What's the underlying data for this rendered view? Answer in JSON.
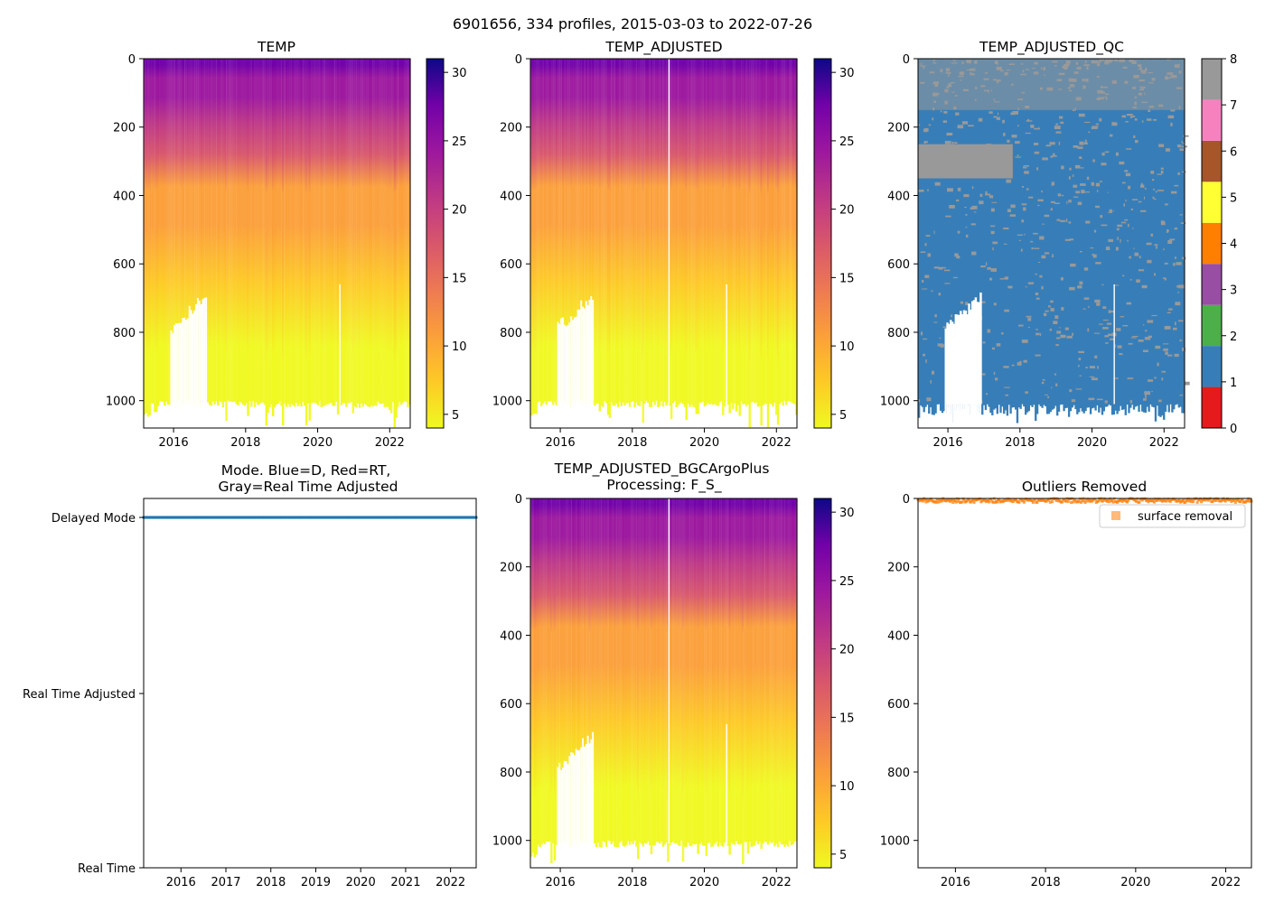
{
  "figure_title": "6901656, 334 profiles, 2015-03-03 to 2022-07-26",
  "chart_data": [
    {
      "id": "temp",
      "type": "heatmap",
      "title": "TEMP",
      "xlabel": "",
      "ylabel": "",
      "xlim": [
        2015.17,
        2022.57
      ],
      "ylim": [
        1080,
        0
      ],
      "xticks": [
        2016,
        2018,
        2020,
        2022
      ],
      "yticks": [
        0,
        200,
        400,
        600,
        800,
        1000
      ],
      "colorbar": {
        "colormap": "plasma_r",
        "range": [
          4,
          31
        ],
        "ticks": [
          5,
          10,
          15,
          20,
          25,
          30
        ]
      },
      "profile": {
        "surface_temp": 28,
        "temp_at_200": 21,
        "temp_at_400": 11,
        "deep_temp": 4.5,
        "typical_max_depth": 1010
      },
      "gap": {
        "x_start": 2015.9,
        "x_end": 2016.95,
        "depth_top_start": 790,
        "depth_top_end": 690
      }
    },
    {
      "id": "temp_adjusted",
      "type": "heatmap",
      "title": "TEMP_ADJUSTED",
      "xlim": [
        2015.17,
        2022.57
      ],
      "ylim": [
        1080,
        0
      ],
      "xticks": [
        2016,
        2018,
        2020,
        2022
      ],
      "yticks": [
        0,
        200,
        400,
        600,
        800,
        1000
      ],
      "colorbar": {
        "colormap": "plasma_r",
        "range": [
          4,
          31
        ],
        "ticks": [
          5,
          10,
          15,
          20,
          25,
          30
        ]
      },
      "blank_profile_years": [
        2019.0
      ]
    },
    {
      "id": "temp_adjusted_qc",
      "type": "heatmap",
      "title": "TEMP_ADJUSTED_QC",
      "xlim": [
        2015.17,
        2022.57
      ],
      "ylim": [
        1080,
        0
      ],
      "xticks": [
        2016,
        2018,
        2020,
        2022
      ],
      "yticks": [
        0,
        200,
        400,
        600,
        800,
        1000
      ],
      "colorbar": {
        "type": "categorical",
        "flags": [
          0,
          1,
          2,
          3,
          4,
          5,
          6,
          7,
          8
        ],
        "colors": [
          "#e41a1c",
          "#377eb8",
          "#4daf4a",
          "#984ea3",
          "#ff7f00",
          "#ffff33",
          "#a65628",
          "#f781bf",
          "#999999"
        ]
      },
      "dominant_flags": [
        1,
        8
      ],
      "gray_block": {
        "x_start": 2015.17,
        "x_end": 2017.8,
        "depth_start": 250,
        "depth_end": 350,
        "flag": 8
      }
    },
    {
      "id": "mode",
      "type": "scatter",
      "title": "Mode. Blue=D, Red=RT,\nGray=Real Time Adjusted",
      "xlim": [
        2015.17,
        2022.57
      ],
      "xticks": [
        2016,
        2017,
        2018,
        2019,
        2020,
        2021,
        2022
      ],
      "ycategories": [
        "Delayed Mode",
        "Real Time Adjusted",
        "Real Time"
      ],
      "series": [
        {
          "name": "D",
          "color": "#1f77b4",
          "category": "Delayed Mode",
          "x_range": [
            2015.17,
            2022.57
          ],
          "count": 334
        }
      ]
    },
    {
      "id": "temp_bgc",
      "type": "heatmap",
      "title": "TEMP_ADJUSTED_BGCArgoPlus\nProcessing: F_S_",
      "xlim": [
        2015.17,
        2022.57
      ],
      "ylim": [
        1080,
        0
      ],
      "xticks": [
        2016,
        2018,
        2020,
        2022
      ],
      "yticks": [
        0,
        200,
        400,
        600,
        800,
        1000
      ],
      "colorbar": {
        "colormap": "plasma_r",
        "range": [
          4,
          31
        ],
        "ticks": [
          5,
          10,
          15,
          20,
          25,
          30
        ]
      }
    },
    {
      "id": "outliers",
      "type": "scatter",
      "title": "Outliers Removed",
      "xlim": [
        2015.17,
        2022.57
      ],
      "ylim": [
        1080,
        0
      ],
      "xticks": [
        2016,
        2018,
        2020,
        2022
      ],
      "yticks": [
        0,
        200,
        400,
        600,
        800,
        1000
      ],
      "legend": {
        "label": "surface removal",
        "color": "#ff7f0e",
        "placement": "top-right"
      },
      "series": [
        {
          "name": "surface removal",
          "color": "#ff7f0e",
          "depth_range": [
            0,
            12
          ],
          "x_range": [
            2015.17,
            2022.57
          ]
        }
      ]
    }
  ]
}
